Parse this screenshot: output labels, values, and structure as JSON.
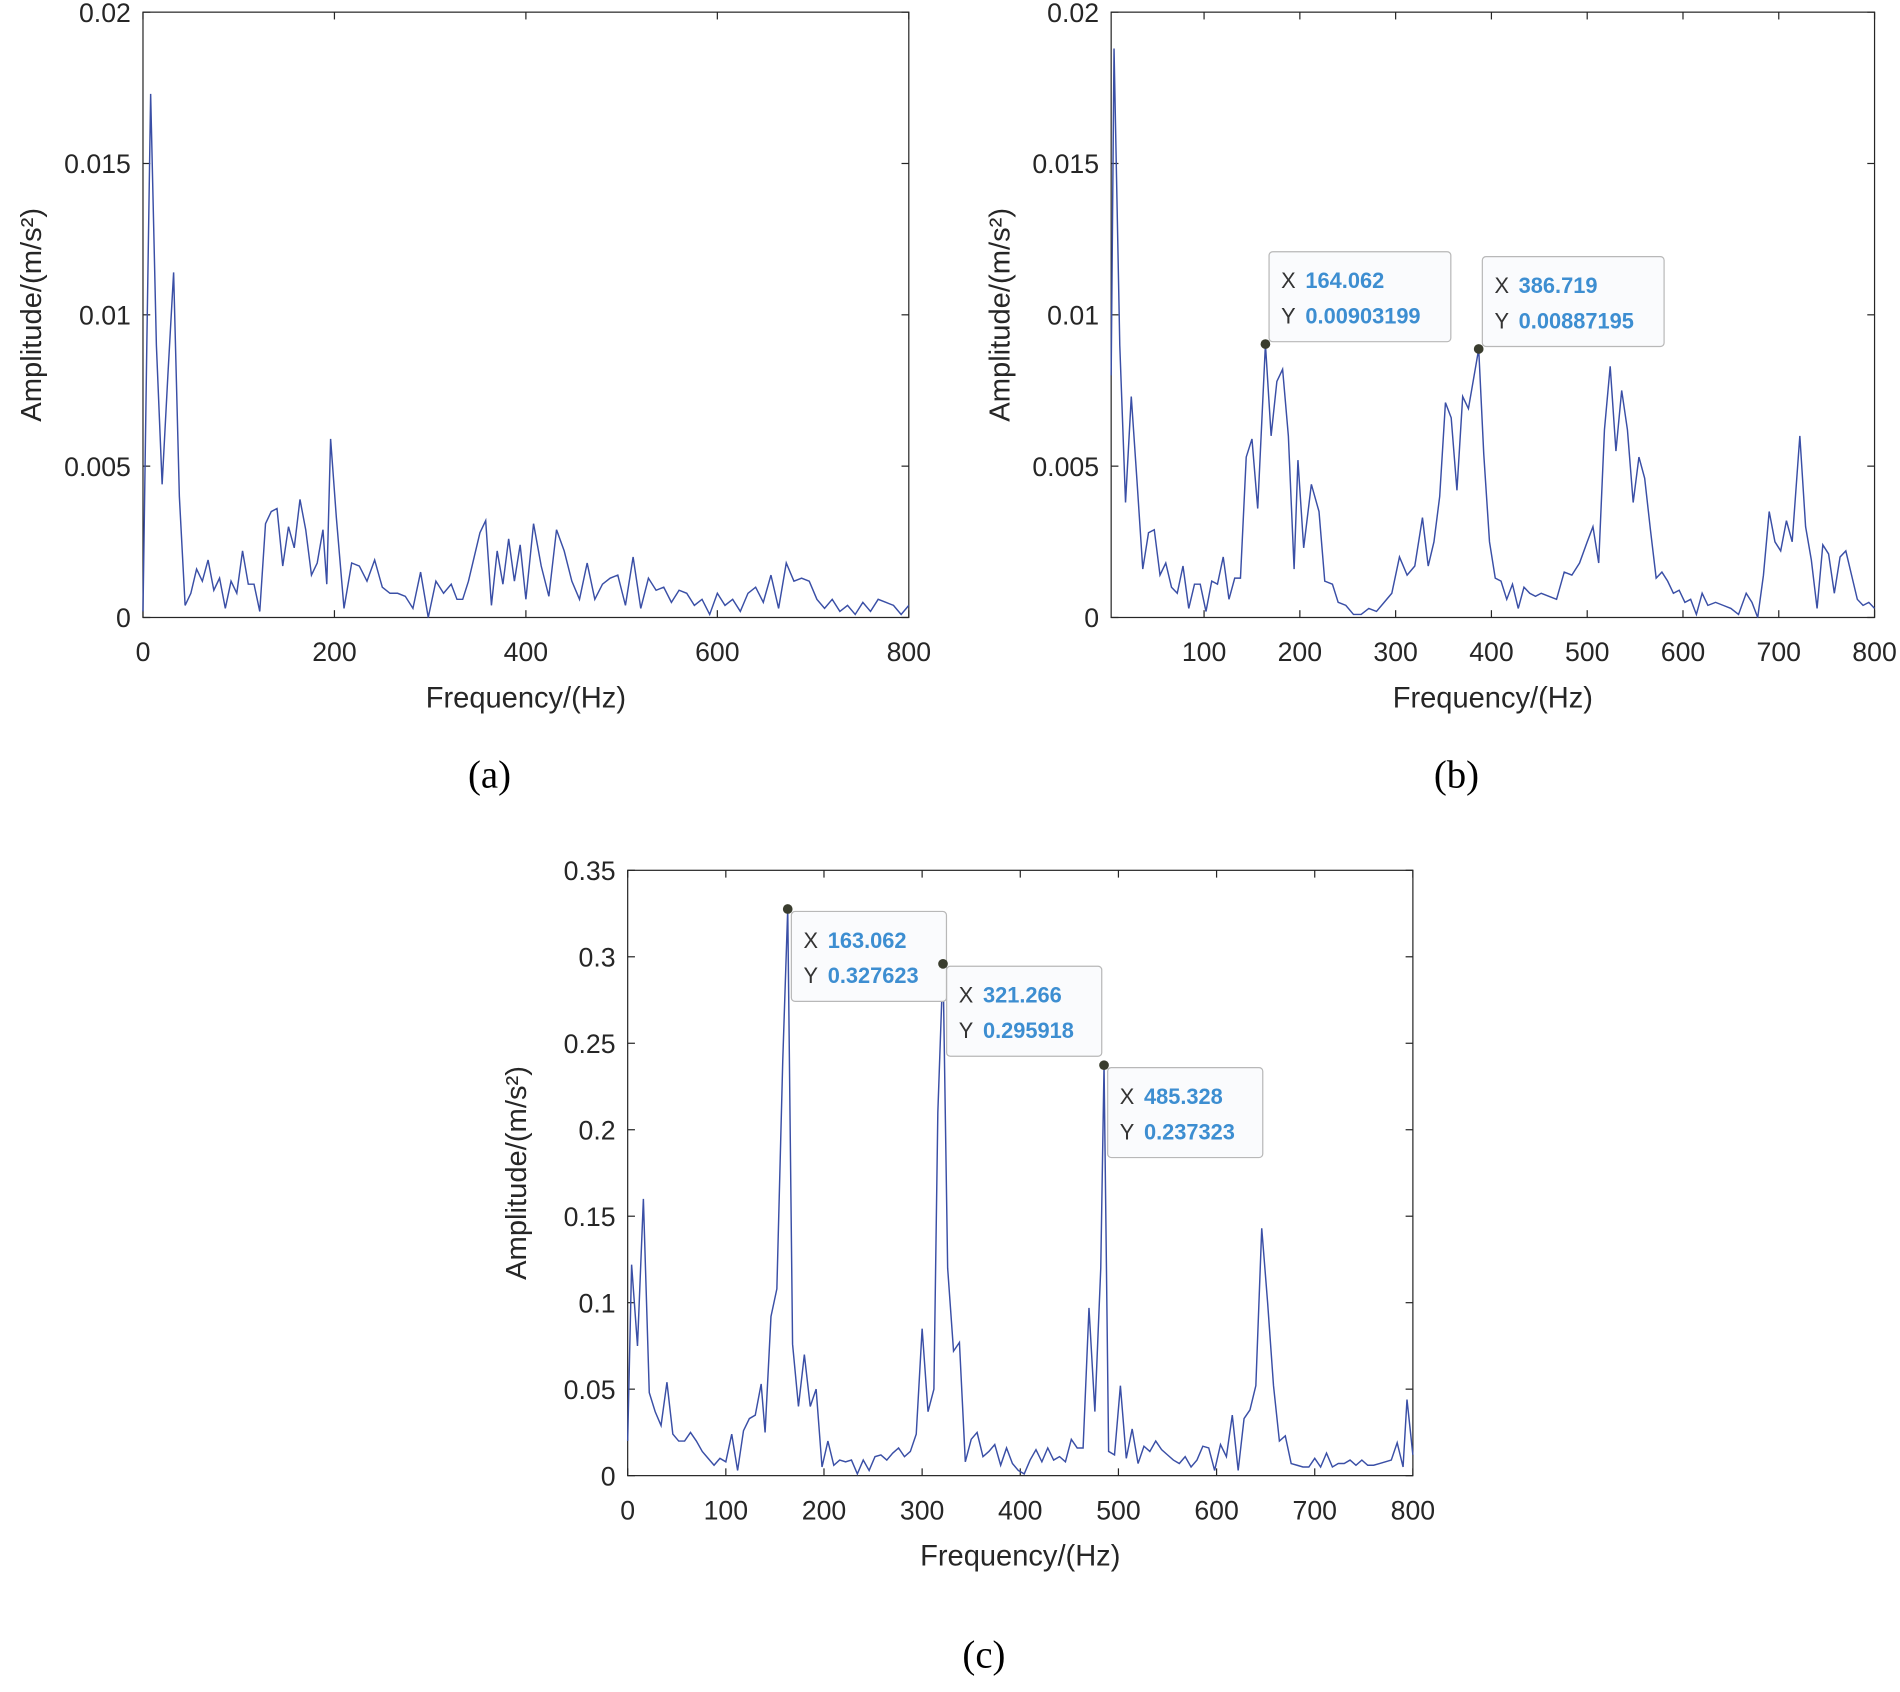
{
  "chart_data": [
    {
      "type": "line",
      "caption": "(a)",
      "xlabel": "Frequency/(Hz)",
      "ylabel": "Amplitude/(m/s²)",
      "color": "#3a4fa6",
      "xlim": [
        0,
        800
      ],
      "xticks": [
        0,
        200,
        400,
        600,
        800
      ],
      "ylim": [
        0,
        0.02
      ],
      "yticks": [
        0,
        0.005,
        0.01,
        0.015,
        0.02
      ],
      "x": [
        0,
        4,
        8,
        14,
        20,
        26,
        32,
        38,
        44,
        50,
        56,
        62,
        68,
        74,
        80,
        86,
        92,
        98,
        104,
        110,
        116,
        122,
        128,
        134,
        140,
        146,
        152,
        158,
        164,
        170,
        176,
        182,
        188,
        192,
        196,
        202,
        210,
        218,
        226,
        234,
        242,
        250,
        258,
        266,
        274,
        282,
        290,
        298,
        306,
        314,
        322,
        328,
        334,
        340,
        346,
        352,
        358,
        364,
        370,
        376,
        382,
        388,
        394,
        400,
        408,
        416,
        424,
        432,
        440,
        448,
        456,
        464,
        472,
        480,
        488,
        496,
        504,
        512,
        520,
        528,
        536,
        544,
        552,
        560,
        568,
        576,
        584,
        592,
        600,
        608,
        616,
        624,
        632,
        640,
        648,
        656,
        664,
        672,
        680,
        688,
        696,
        704,
        712,
        720,
        728,
        736,
        744,
        752,
        760,
        768,
        776,
        784,
        792,
        800
      ],
      "values": [
        0.0002,
        0.009,
        0.0173,
        0.009,
        0.0044,
        0.008,
        0.0114,
        0.004,
        0.0004,
        0.0008,
        0.0016,
        0.0012,
        0.0019,
        0.0009,
        0.0013,
        0.0003,
        0.0012,
        0.0008,
        0.0022,
        0.0011,
        0.0011,
        0.0002,
        0.0031,
        0.0035,
        0.0036,
        0.0017,
        0.003,
        0.0023,
        0.0039,
        0.0029,
        0.0014,
        0.0018,
        0.0029,
        0.0011,
        0.0059,
        0.0033,
        0.0003,
        0.0018,
        0.0017,
        0.0012,
        0.0019,
        0.001,
        0.0008,
        0.0008,
        0.0007,
        0.0003,
        0.0015,
        0,
        0.0012,
        0.0008,
        0.0011,
        0.0006,
        0.0006,
        0.0012,
        0.002,
        0.0028,
        0.0032,
        0.0004,
        0.0022,
        0.0011,
        0.0026,
        0.0012,
        0.0024,
        0.0006,
        0.0031,
        0.0017,
        0.0007,
        0.0029,
        0.0022,
        0.0012,
        0.0006,
        0.0018,
        0.0006,
        0.0011,
        0.0013,
        0.0014,
        0.0004,
        0.002,
        0.0003,
        0.0013,
        0.0009,
        0.001,
        0.0005,
        0.0009,
        0.0008,
        0.0004,
        0.0006,
        0.0001,
        0.0008,
        0.0004,
        0.0006,
        0.0002,
        0.0008,
        0.001,
        0.0005,
        0.0014,
        0.0003,
        0.0018,
        0.0012,
        0.0013,
        0.0012,
        0.0006,
        0.0003,
        0.0006,
        0.0002,
        0.0004,
        0.0001,
        0.0005,
        0.0002,
        0.0006,
        0.0005,
        0.0004,
        0.0001,
        0.0004
      ]
    },
    {
      "type": "line",
      "caption": "(b)",
      "xlabel": "Frequency/(Hz)",
      "ylabel": "Amplitude/(m/s²)",
      "color": "#3a4fa6",
      "xlim": [
        3,
        800
      ],
      "xticks": [
        100,
        200,
        300,
        400,
        500,
        600,
        700,
        800
      ],
      "ylim": [
        0,
        0.02
      ],
      "yticks": [
        0,
        0.005,
        0.01,
        0.015,
        0.02
      ],
      "x": [
        3,
        6,
        12,
        18,
        24,
        30,
        36,
        42,
        48,
        54,
        60,
        66,
        72,
        78,
        84,
        90,
        96,
        102,
        108,
        114,
        120,
        126,
        132,
        138,
        144,
        150,
        156,
        164.062,
        170,
        176,
        182,
        188,
        194,
        198,
        204,
        212,
        220,
        226,
        234,
        240,
        248,
        256,
        264,
        272,
        280,
        288,
        296,
        304,
        312,
        320,
        328,
        334,
        340,
        346,
        352,
        358,
        364,
        370,
        376,
        386.719,
        392,
        398,
        404,
        410,
        416,
        422,
        428,
        434,
        440,
        446,
        452,
        460,
        468,
        476,
        484,
        492,
        500,
        506,
        512,
        518,
        524,
        530,
        536,
        542,
        548,
        554,
        560,
        566,
        572,
        578,
        584,
        590,
        596,
        602,
        608,
        614,
        620,
        626,
        634,
        642,
        650,
        658,
        666,
        672,
        678,
        684,
        690,
        696,
        702,
        708,
        714,
        722,
        728,
        734,
        740,
        746,
        752,
        758,
        764,
        770,
        776,
        782,
        788,
        794,
        800
      ],
      "values": [
        0.008,
        0.0188,
        0.009,
        0.0038,
        0.0073,
        0.0045,
        0.0016,
        0.0028,
        0.0029,
        0.0014,
        0.0018,
        0.001,
        0.0008,
        0.0017,
        0.0003,
        0.0011,
        0.0011,
        0.0002,
        0.0012,
        0.0011,
        0.002,
        0.0006,
        0.0013,
        0.0013,
        0.0053,
        0.0059,
        0.0036,
        0.00903199,
        0.006,
        0.0078,
        0.0082,
        0.006,
        0.0016,
        0.0052,
        0.0023,
        0.0044,
        0.0035,
        0.0012,
        0.0011,
        0.0005,
        0.0004,
        0.0001,
        0.0001,
        0.0003,
        0.0002,
        0.0005,
        0.0008,
        0.002,
        0.0014,
        0.0017,
        0.0033,
        0.0017,
        0.0025,
        0.004,
        0.0071,
        0.0066,
        0.0042,
        0.0073,
        0.0069,
        0.00887195,
        0.0054,
        0.0025,
        0.0013,
        0.0012,
        0.0006,
        0.0011,
        0.0003,
        0.001,
        0.0008,
        0.0007,
        0.0008,
        0.0007,
        0.0006,
        0.0015,
        0.0014,
        0.0018,
        0.0025,
        0.003,
        0.0018,
        0.0062,
        0.0083,
        0.0055,
        0.0075,
        0.0062,
        0.0038,
        0.0053,
        0.0046,
        0.0029,
        0.0013,
        0.0015,
        0.0012,
        0.0008,
        0.0009,
        0.0005,
        0.0006,
        0.0001,
        0.0008,
        0.0004,
        0.0005,
        0.0004,
        0.0003,
        0.0001,
        0.0008,
        0.0005,
        0,
        0.0014,
        0.0035,
        0.0025,
        0.0022,
        0.0032,
        0.0025,
        0.006,
        0.003,
        0.0019,
        0.0003,
        0.0024,
        0.0021,
        0.0008,
        0.002,
        0.0022,
        0.0014,
        0.0006,
        0.0004,
        0.0005,
        0.0003
      ],
      "datatip_labels": [
        "X",
        "Y"
      ],
      "datatips": [
        {
          "x": 164.062,
          "y": 0.00903199
        },
        {
          "x": 386.719,
          "y": 0.00887195
        }
      ]
    },
    {
      "type": "line",
      "caption": "(c)",
      "xlabel": "Frequency/(Hz)",
      "ylabel": "Amplitude/(m/s²)",
      "color": "#3a4fa6",
      "xlim": [
        0,
        800
      ],
      "xticks": [
        0,
        100,
        200,
        300,
        400,
        500,
        600,
        700,
        800
      ],
      "ylim": [
        0,
        0.35
      ],
      "yticks": [
        0,
        0.05,
        0.1,
        0.15,
        0.2,
        0.25,
        0.3,
        0.35
      ],
      "x": [
        0,
        4,
        10,
        16,
        22,
        28,
        34,
        40,
        46,
        52,
        58,
        64,
        70,
        76,
        82,
        88,
        94,
        100,
        106,
        112,
        118,
        124,
        130,
        136,
        140,
        146,
        152,
        158,
        163.062,
        168,
        174,
        180,
        186,
        192,
        198,
        204,
        210,
        216,
        222,
        228,
        234,
        240,
        246,
        252,
        258,
        264,
        270,
        276,
        282,
        288,
        294,
        300,
        306,
        312,
        316,
        321.266,
        326,
        332,
        338,
        344,
        350,
        356,
        362,
        368,
        374,
        380,
        386,
        392,
        398,
        404,
        410,
        416,
        422,
        428,
        434,
        440,
        446,
        452,
        458,
        464,
        470,
        476,
        482,
        485.328,
        490,
        496,
        502,
        508,
        514,
        520,
        526,
        532,
        538,
        544,
        550,
        556,
        562,
        568,
        574,
        580,
        586,
        592,
        598,
        604,
        610,
        616,
        622,
        628,
        634,
        640,
        646,
        652,
        658,
        664,
        670,
        676,
        682,
        688,
        694,
        700,
        706,
        712,
        718,
        724,
        730,
        736,
        742,
        748,
        754,
        760,
        766,
        772,
        778,
        784,
        790,
        794,
        800
      ],
      "values": [
        0.02,
        0.122,
        0.075,
        0.16,
        0.048,
        0.037,
        0.029,
        0.054,
        0.024,
        0.02,
        0.02,
        0.025,
        0.02,
        0.014,
        0.01,
        0.006,
        0.01,
        0.008,
        0.024,
        0.003,
        0.026,
        0.033,
        0.035,
        0.053,
        0.025,
        0.092,
        0.108,
        0.24,
        0.327623,
        0.076,
        0.04,
        0.07,
        0.04,
        0.05,
        0.005,
        0.02,
        0.006,
        0.009,
        0.008,
        0.009,
        0.001,
        0.009,
        0.003,
        0.011,
        0.012,
        0.009,
        0.013,
        0.016,
        0.011,
        0.014,
        0.024,
        0.085,
        0.037,
        0.05,
        0.21,
        0.295918,
        0.12,
        0.072,
        0.077,
        0.008,
        0.021,
        0.025,
        0.011,
        0.014,
        0.018,
        0.006,
        0.016,
        0.007,
        0.003,
        0.001,
        0.009,
        0.015,
        0.008,
        0.016,
        0.009,
        0.011,
        0.008,
        0.021,
        0.016,
        0.016,
        0.097,
        0.037,
        0.12,
        0.237323,
        0.014,
        0.012,
        0.052,
        0.01,
        0.027,
        0.007,
        0.017,
        0.014,
        0.02,
        0.015,
        0.012,
        0.009,
        0.007,
        0.011,
        0.005,
        0.009,
        0.017,
        0.016,
        0.003,
        0.018,
        0.011,
        0.035,
        0.003,
        0.033,
        0.038,
        0.052,
        0.143,
        0.1,
        0.052,
        0.02,
        0.023,
        0.007,
        0.006,
        0.005,
        0.005,
        0.01,
        0.005,
        0.013,
        0.005,
        0.007,
        0.007,
        0.009,
        0.006,
        0.009,
        0.006,
        0.006,
        0.007,
        0.008,
        0.009,
        0.019,
        0.005,
        0.044,
        0.012
      ],
      "datatip_labels": [
        "X",
        "Y"
      ],
      "datatips": [
        {
          "x": 163.062,
          "y": 0.327623
        },
        {
          "x": 321.266,
          "y": 0.295918
        },
        {
          "x": 485.328,
          "y": 0.237323
        }
      ]
    }
  ]
}
